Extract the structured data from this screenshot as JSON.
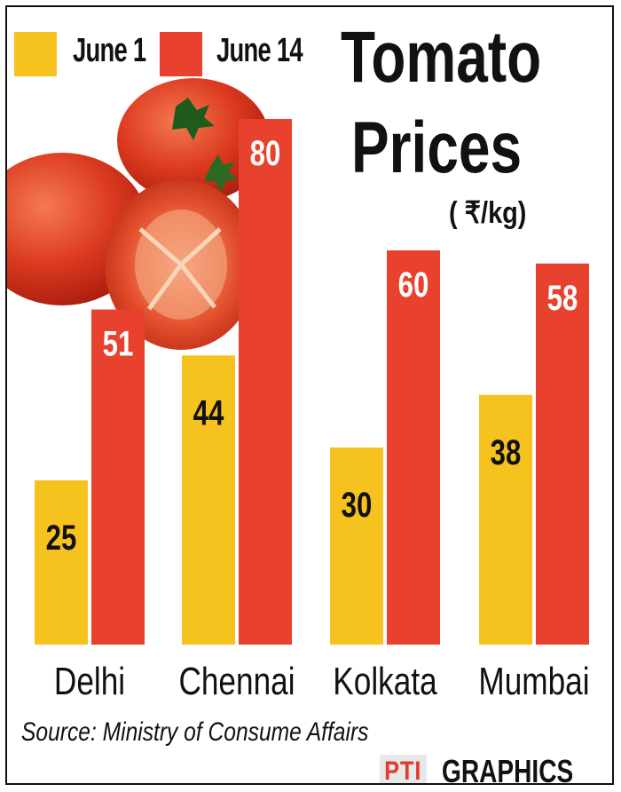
{
  "chart_data": {
    "type": "bar",
    "title_line1": "Tomato",
    "title_line2": "Prices",
    "unit": "( ₹/kg)",
    "categories": [
      "Delhi",
      "Chennai",
      "Kolkata",
      "Mumbai"
    ],
    "series": [
      {
        "name": "June 1",
        "values": [
          25,
          44,
          30,
          38
        ],
        "color": "#f6c31e"
      },
      {
        "name": "June 14",
        "values": [
          51,
          80,
          60,
          58
        ],
        "color": "#e8412e"
      }
    ],
    "ylim": [
      0,
      96
    ],
    "grid": false,
    "legend_position": "top-left"
  },
  "source": "Source: Ministry of Consume Affairs",
  "credit": {
    "mark": "PTI",
    "word": "GRAPHICS"
  }
}
